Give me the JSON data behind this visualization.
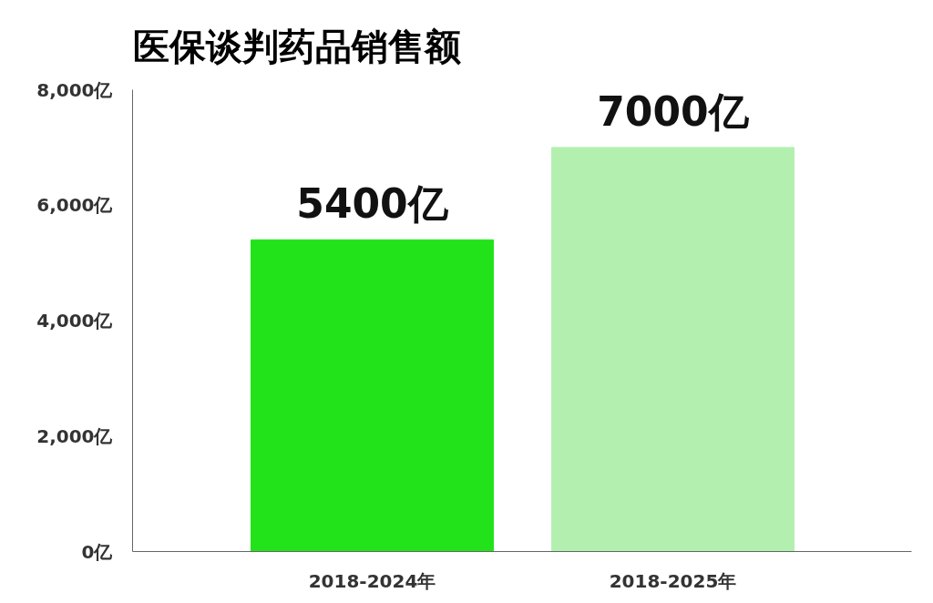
{
  "chart_data": {
    "type": "bar",
    "title": "医保谈判药品销售额",
    "categories": [
      "2018-2024年",
      "2018-2025年"
    ],
    "values": [
      5400,
      7000
    ],
    "colors": [
      "#22e31a",
      "#b3f0b0"
    ],
    "value_labels": [
      "5400亿",
      "7000亿"
    ],
    "ylim": [
      0,
      8000
    ],
    "yticks": [
      {
        "value": 0,
        "label": "0亿"
      },
      {
        "value": 2000,
        "label": "2,000亿"
      },
      {
        "value": 4000,
        "label": "4,000亿"
      },
      {
        "value": 6000,
        "label": "6,000亿"
      },
      {
        "value": 8000,
        "label": "8,000亿"
      }
    ],
    "grid": false
  }
}
